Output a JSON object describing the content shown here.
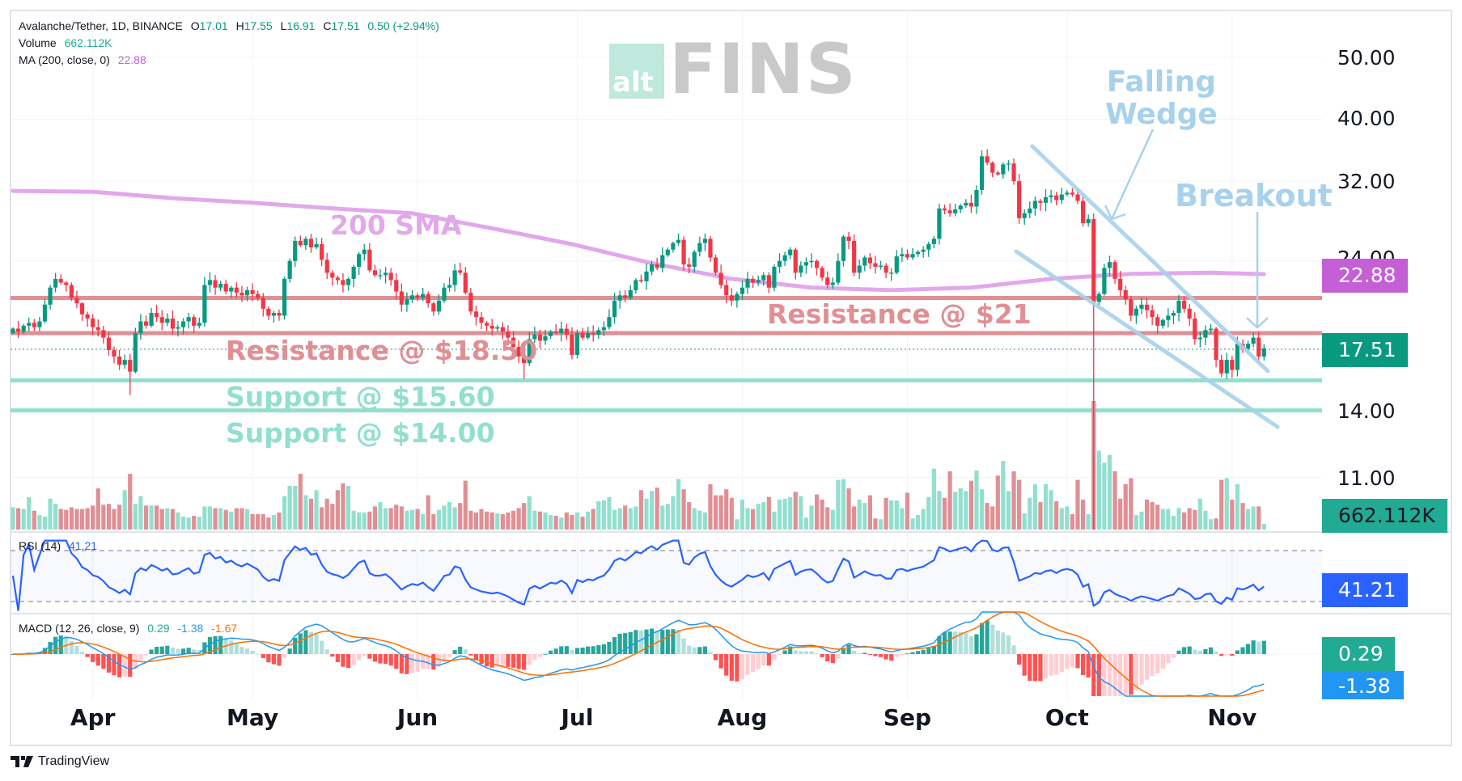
{
  "legend": {
    "symbol": "Avalanche/Tether, 1D, BINANCE",
    "open_label": "O",
    "open": "17.01",
    "high_label": "H",
    "high": "17.55",
    "low_label": "L",
    "low": "16.91",
    "close_label": "C",
    "close": "17.51",
    "change": "0.50 (+2.94%)",
    "volume_label": "Volume",
    "volume": "662.112K",
    "ma_label": "MA (200, close, 0)",
    "ma_value": "22.88",
    "rsi_label": "RSI (14)",
    "rsi_value": "41.21",
    "macd_label": "MACD (12, 26, close, 9)",
    "macd_hist": "0.29",
    "macd_line": "-1.38",
    "macd_signal": "-1.67"
  },
  "logo": {
    "prefix": "alt",
    "name": "FINS"
  },
  "annotations": {
    "falling_wedge_1": "Falling",
    "falling_wedge_2": "Wedge",
    "breakout": "Breakout",
    "sma": "200 SMA",
    "resistance_21": "Resistance @ $21",
    "resistance_1850": "Resistance @ $18.50",
    "support_1560": "Support @ $15.60",
    "support_1400": "Support @ $14.00"
  },
  "badges": {
    "ma": "22.88",
    "price": "17.51",
    "volume": "662.112K",
    "rsi": "41.21",
    "macd_hist": "0.29",
    "macd_line": "-1.38"
  },
  "footer": {
    "brand": "TradingView"
  },
  "colors": {
    "up": "#089981",
    "down": "#f23645",
    "vol_up": "#92dfcf",
    "vol_down": "#e08f94",
    "sma": "#e1a8ea",
    "ma_badge": "#c45fd6",
    "resistance": "#e08f94",
    "support": "#92dfcf",
    "annotation": "#a8d1ec",
    "rsi": "#2962ff",
    "macd": "#2196f3",
    "signal": "#ff6d00"
  },
  "chart_data": {
    "type": "candlestick",
    "title": "Avalanche/Tether, 1D, BINANCE",
    "y_scale": "log",
    "y_ticks": [
      "50.00",
      "40.00",
      "32.00",
      "24.00",
      "14.00",
      "11.00"
    ],
    "x_labels": [
      "Apr",
      "May",
      "Jun",
      "Jul",
      "Aug",
      "Sep",
      "Oct",
      "Nov"
    ],
    "grid": true,
    "closes": [
      18.8,
      18.6,
      19.0,
      19.2,
      18.9,
      19.3,
      20.5,
      21.8,
      22.5,
      22.2,
      22.0,
      21.0,
      20.6,
      19.8,
      19.5,
      18.9,
      18.7,
      18.2,
      17.4,
      17.0,
      16.5,
      16.8,
      16.1,
      18.5,
      19.3,
      19.0,
      19.9,
      19.6,
      19.2,
      19.5,
      18.8,
      18.9,
      19.3,
      19.6,
      19.0,
      19.2,
      22.0,
      22.4,
      21.8,
      22.1,
      21.5,
      21.8,
      21.4,
      21.2,
      21.6,
      21.3,
      21.0,
      20.2,
      19.7,
      19.9,
      19.7,
      22.5,
      24.0,
      25.8,
      25.4,
      26.0,
      25.2,
      25.5,
      24.1,
      23.0,
      22.6,
      22.4,
      22.0,
      22.5,
      23.5,
      24.6,
      25.0,
      23.2,
      22.8,
      22.8,
      23.0,
      22.4,
      21.5,
      20.5,
      20.9,
      21.2,
      21.0,
      21.3,
      20.6,
      20.0,
      20.8,
      21.8,
      22.0,
      23.2,
      23.0,
      21.4,
      20.0,
      19.6,
      19.2,
      19.0,
      18.8,
      18.9,
      18.6,
      18.2,
      17.6,
      17.0,
      16.6,
      18.1,
      18.4,
      18.0,
      18.3,
      18.6,
      18.5,
      18.8,
      18.4,
      17.1,
      18.5,
      18.2,
      18.5,
      18.4,
      18.7,
      18.9,
      19.6,
      20.8,
      21.2,
      21.0,
      21.6,
      22.4,
      22.3,
      23.1,
      23.7,
      23.4,
      24.5,
      25.0,
      25.6,
      25.9,
      23.7,
      23.5,
      24.8,
      25.6,
      26.0,
      24.3,
      23.0,
      22.0,
      21.2,
      20.8,
      21.3,
      21.8,
      22.5,
      22.2,
      22.4,
      22.8,
      21.8,
      23.5,
      24.0,
      24.5,
      25.0,
      23.0,
      23.6,
      23.9,
      24.0,
      23.4,
      22.6,
      22.0,
      22.2,
      24.0,
      26.2,
      25.8,
      23.0,
      23.6,
      24.3,
      23.8,
      23.5,
      23.6,
      23.0,
      23.0,
      24.4,
      24.6,
      24.3,
      24.6,
      24.8,
      25.0,
      25.5,
      26.0,
      29.0,
      28.8,
      28.5,
      28.9,
      29.3,
      29.6,
      29.2,
      31.0,
      35.0,
      34.2,
      33.0,
      32.8,
      34.0,
      34.1,
      32.0,
      28.0,
      28.5,
      29.0,
      29.8,
      29.6,
      30.2,
      30.4,
      29.9,
      30.5,
      30.7,
      30.5,
      29.8,
      27.5,
      27.9,
      20.7,
      21.3,
      23.4,
      23.9,
      22.5,
      21.6,
      20.9,
      19.7,
      20.2,
      20.5,
      20.1,
      19.6,
      19.0,
      19.4,
      19.7,
      19.9,
      20.8,
      20.2,
      19.5,
      18.1,
      18.2,
      18.7,
      18.8,
      16.8,
      16.0,
      16.8,
      16.2,
      17.8,
      17.5,
      17.8,
      18.2,
      17.0,
      17.51
    ],
    "first_open": 18.5,
    "notable_lows": [
      {
        "index": 22,
        "low": 14.8
      },
      {
        "index": 96,
        "low": 15.7
      },
      {
        "index": 203,
        "low": 8.5
      }
    ],
    "volumes_k": [
      2600,
      2500,
      2400,
      3800,
      2200,
      1700,
      1500,
      3600,
      3000,
      2400,
      2300,
      2600,
      2400,
      2400,
      2500,
      2800,
      4800,
      2900,
      3000,
      2400,
      2900,
      4600,
      6500,
      3000,
      3900,
      2800,
      2800,
      2800,
      2400,
      2500,
      2400,
      2000,
      1500,
      1400,
      1600,
      1500,
      2700,
      2700,
      2500,
      2500,
      2300,
      2100,
      2500,
      2500,
      2400,
      1800,
      1800,
      1800,
      1400,
      1700,
      2000,
      3900,
      5100,
      5100,
      6500,
      4000,
      3600,
      4600,
      2600,
      3600,
      3000,
      4600,
      5400,
      5100,
      2200,
      2000,
      2000,
      2100,
      2700,
      3200,
      2500,
      2500,
      2900,
      2700,
      2200,
      2300,
      2400,
      1800,
      4000,
      1800,
      2300,
      2800,
      3200,
      2600,
      3100,
      5700,
      2200,
      2000,
      2400,
      2100,
      2000,
      1900,
      1800,
      2000,
      2200,
      2500,
      3100,
      3900,
      2200,
      2100,
      2000,
      1700,
      1600,
      1400,
      2000,
      1700,
      2000,
      1500,
      2100,
      2400,
      3300,
      3400,
      3800,
      2300,
      2500,
      2800,
      2500,
      2700,
      4600,
      3600,
      4500,
      4900,
      2800,
      3000,
      3900,
      5900,
      4700,
      3200,
      2500,
      2200,
      2000,
      5300,
      4000,
      4000,
      4700,
      3700,
      1200,
      3500,
      2500,
      2400,
      3000,
      3200,
      3800,
      2100,
      3500,
      3600,
      3800,
      4400,
      3900,
      1400,
      2800,
      4100,
      3500,
      2600,
      2300,
      5800,
      5900,
      4800,
      2700,
      3500,
      3100,
      4000,
      1300,
      1200,
      3700,
      3400,
      3400,
      2500,
      4300,
      1300,
      1700,
      2400,
      3800,
      7100,
      4500,
      3700,
      6800,
      4400,
      4800,
      4500,
      5700,
      6900,
      4700,
      3100,
      2700,
      6300,
      8000,
      4500,
      6800,
      5800,
      1900,
      3700,
      5300,
      3200,
      5300,
      4600,
      3300,
      2500,
      2700,
      1800,
      5800,
      3500,
      1800,
      15000,
      9200,
      7800,
      8700,
      6800,
      3600,
      5300,
      6000,
      1700,
      2100,
      3500,
      3200,
      2900,
      2400,
      2400,
      1600,
      2500,
      2000,
      2500,
      2300,
      3600,
      2200,
      1200,
      1300,
      5800,
      6000,
      3500,
      5300,
      3100,
      2400,
      2700,
      2700,
      662.112
    ],
    "sma200": [
      [
        "Mar 17",
        30.9
      ],
      [
        "Apr 1",
        30.8
      ],
      [
        "Apr 16",
        30.1
      ],
      [
        "May 1",
        29.6
      ],
      [
        "May 16",
        29.0
      ],
      [
        "May 31",
        28.5
      ],
      [
        "Jun 15",
        27.0
      ],
      [
        "Jun 30",
        25.5
      ],
      [
        "Jul 15",
        23.8
      ],
      [
        "Jul 30",
        22.5
      ],
      [
        "Aug 14",
        21.8
      ],
      [
        "Aug 29",
        21.6
      ],
      [
        "Sep 13",
        21.8
      ],
      [
        "Sep 28",
        22.5
      ],
      [
        "Oct 13",
        22.9
      ],
      [
        "Oct 28",
        23.0
      ],
      [
        "Nov 7",
        22.88
      ]
    ],
    "levels": [
      {
        "name": "Resistance",
        "value": 21.0
      },
      {
        "name": "Resistance",
        "value": 18.5
      },
      {
        "name": "Support",
        "value": 15.6
      },
      {
        "name": "Support",
        "value": 14.0
      }
    ],
    "rsi": {
      "period": 14,
      "last": 41.21,
      "upper": 70,
      "lower": 30
    },
    "macd": {
      "fast": 12,
      "slow": 26,
      "signal": 9,
      "hist": 0.29,
      "macd": -1.38,
      "signal_value": -1.67
    }
  }
}
